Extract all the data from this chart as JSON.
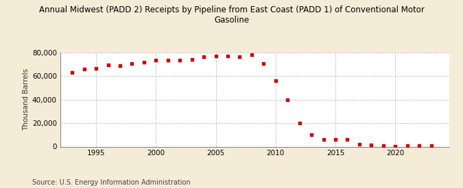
{
  "title": "Annual Midwest (PADD 2) Receipts by Pipeline from East Coast (PADD 1) of Conventional Motor\nGasoline",
  "ylabel": "Thousand Barrels",
  "source": "Source: U.S. Energy Information Administration",
  "background_color": "#f5ecd7",
  "plot_background": "#ffffff",
  "marker_color": "#cc0000",
  "years": [
    1993,
    1994,
    1995,
    1996,
    1997,
    1998,
    1999,
    2000,
    2001,
    2002,
    2003,
    2004,
    2005,
    2006,
    2007,
    2008,
    2009,
    2010,
    2011,
    2012,
    2013,
    2014,
    2015,
    2016,
    2017,
    2018,
    2019,
    2020,
    2021,
    2022,
    2023
  ],
  "values": [
    63000,
    66000,
    66500,
    69500,
    69000,
    70500,
    72000,
    73500,
    73500,
    73500,
    74000,
    76500,
    77000,
    77000,
    76500,
    78500,
    70500,
    56000,
    40000,
    20000,
    10000,
    6000,
    6000,
    6000,
    2000,
    1500,
    1000,
    500,
    1000,
    1000,
    1000
  ],
  "ylim": [
    0,
    80000
  ],
  "yticks": [
    0,
    20000,
    40000,
    60000,
    80000
  ],
  "xlim": [
    1992,
    2024.5
  ],
  "xticks": [
    1995,
    2000,
    2005,
    2010,
    2015,
    2020
  ]
}
